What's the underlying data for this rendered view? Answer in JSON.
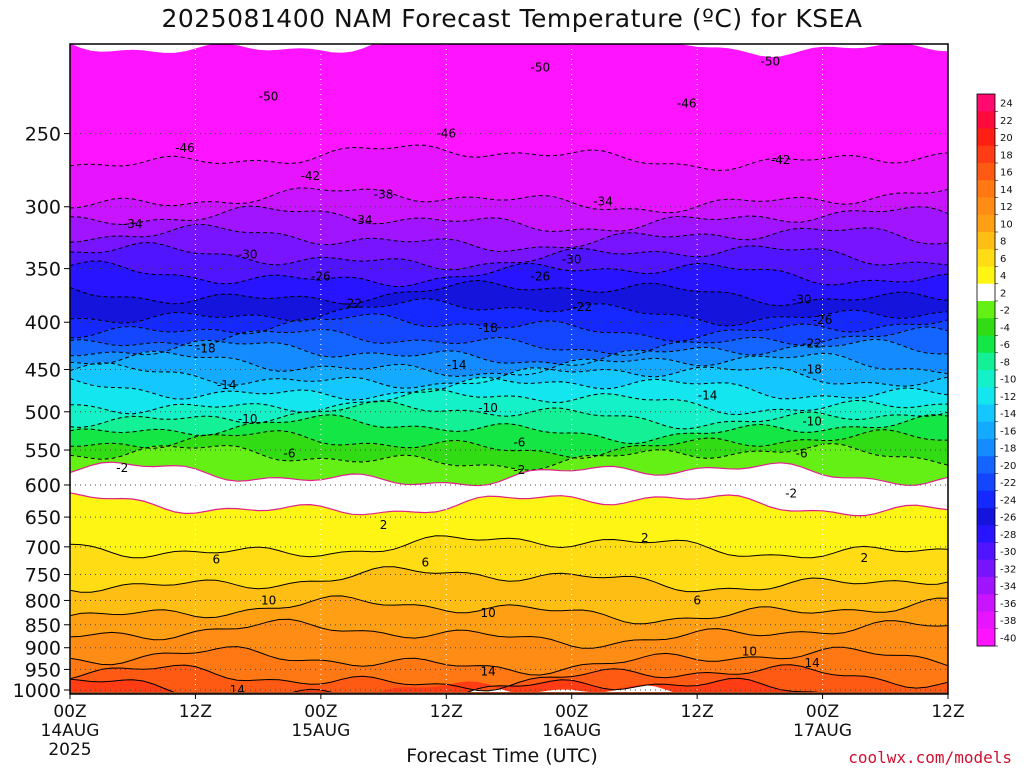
{
  "title": "2025081400 NAM Forecast Temperature (ºC) for KSEA",
  "credit": "coolwx.com/models",
  "chart_data": {
    "type": "heatmap",
    "title": "2025081400 NAM Forecast Temperature (ºC) for KSEA",
    "xlabel": "Forecast Time (UTC)",
    "ylabel": "",
    "x_ticks": [
      {
        "hour": 0,
        "label": [
          "00Z",
          "14AUG",
          "2025"
        ]
      },
      {
        "hour": 12,
        "label": [
          "12Z"
        ]
      },
      {
        "hour": 24,
        "label": [
          "00Z",
          "15AUG"
        ]
      },
      {
        "hour": 36,
        "label": [
          "12Z"
        ]
      },
      {
        "hour": 48,
        "label": [
          "00Z",
          "16AUG"
        ]
      },
      {
        "hour": 60,
        "label": [
          "12Z"
        ]
      },
      {
        "hour": 72,
        "label": [
          "00Z",
          "17AUG"
        ]
      },
      {
        "hour": 84,
        "label": [
          "12Z"
        ]
      }
    ],
    "xlim": [
      0,
      84
    ],
    "y_ticks": [
      250,
      300,
      350,
      400,
      450,
      500,
      550,
      600,
      650,
      700,
      750,
      800,
      850,
      900,
      950,
      1000
    ],
    "ylim": [
      200,
      1010
    ],
    "y_scale": "log-pressure (hPa)",
    "surface_hPa": 1010,
    "colorbar": {
      "labels": [
        "24",
        "22",
        "20",
        "18",
        "16",
        "14",
        "12",
        "10",
        "8",
        "6",
        "4",
        "2",
        "-2",
        "-4",
        "-6",
        "-8",
        "-10",
        "-12",
        "-14",
        "-16",
        "-18",
        "-20",
        "-22",
        "-24",
        "-26",
        "-28",
        "-30",
        "-32",
        "-34",
        "-36",
        "-38",
        "-40"
      ],
      "colors": [
        "#ff0a6e",
        "#ff0a3c",
        "#ff1e14",
        "#ff3c14",
        "#ff5a14",
        "#ff7814",
        "#ff8c14",
        "#ffa014",
        "#ffbe14",
        "#ffdc14",
        "#fff514",
        "#ffffff",
        "#64f014",
        "#32dc14",
        "#14e646",
        "#14f096",
        "#14f0c8",
        "#14e6f0",
        "#14c8ff",
        "#14aaff",
        "#148cff",
        "#1464ff",
        "#1446ff",
        "#1428ff",
        "#1414dc",
        "#2814ff",
        "#5014ff",
        "#7814ff",
        "#a014ff",
        "#c814ff",
        "#e614ff",
        "#ff14ff"
      ]
    },
    "contour_labels": [
      {
        "value": "-50",
        "hour": 19,
        "p": 228
      },
      {
        "value": "-50",
        "hour": 45,
        "p": 212
      },
      {
        "value": "-50",
        "hour": 67,
        "p": 209
      },
      {
        "value": "-46",
        "hour": 11,
        "p": 259
      },
      {
        "value": "-46",
        "hour": 36,
        "p": 250
      },
      {
        "value": "-46",
        "hour": 59,
        "p": 232
      },
      {
        "value": "-42",
        "hour": 23,
        "p": 278
      },
      {
        "value": "-42",
        "hour": 68,
        "p": 267
      },
      {
        "value": "-38",
        "hour": 30,
        "p": 291
      },
      {
        "value": "-34",
        "hour": 6,
        "p": 313
      },
      {
        "value": "-34",
        "hour": 28,
        "p": 310
      },
      {
        "value": "-34",
        "hour": 51,
        "p": 296
      },
      {
        "value": "-30",
        "hour": 17,
        "p": 338
      },
      {
        "value": "-30",
        "hour": 48,
        "p": 342
      },
      {
        "value": "-30",
        "hour": 70,
        "p": 378
      },
      {
        "value": "-26",
        "hour": 24,
        "p": 357
      },
      {
        "value": "-26",
        "hour": 45,
        "p": 357
      },
      {
        "value": "-26",
        "hour": 72,
        "p": 398
      },
      {
        "value": "-22",
        "hour": 27,
        "p": 382
      },
      {
        "value": "-22",
        "hour": 49,
        "p": 385
      },
      {
        "value": "-22",
        "hour": 71,
        "p": 422
      },
      {
        "value": "-18",
        "hour": 13,
        "p": 427
      },
      {
        "value": "-18",
        "hour": 40,
        "p": 406
      },
      {
        "value": "-18",
        "hour": 71,
        "p": 450
      },
      {
        "value": "-14",
        "hour": 15,
        "p": 468
      },
      {
        "value": "-14",
        "hour": 37,
        "p": 445
      },
      {
        "value": "-14",
        "hour": 61,
        "p": 480
      },
      {
        "value": "-10",
        "hour": 17,
        "p": 509
      },
      {
        "value": "-10",
        "hour": 40,
        "p": 495
      },
      {
        "value": "-10",
        "hour": 71,
        "p": 512
      },
      {
        "value": "-6",
        "hour": 21,
        "p": 555
      },
      {
        "value": "-6",
        "hour": 43,
        "p": 540
      },
      {
        "value": "-6",
        "hour": 70,
        "p": 555
      },
      {
        "value": "-2",
        "hour": 5,
        "p": 575
      },
      {
        "value": "-2",
        "hour": 43,
        "p": 578
      },
      {
        "value": "-2",
        "hour": 69,
        "p": 613
      },
      {
        "value": "2",
        "hour": 30,
        "p": 663
      },
      {
        "value": "2",
        "hour": 55,
        "p": 685
      },
      {
        "value": "2",
        "hour": 76,
        "p": 720
      },
      {
        "value": "6",
        "hour": 14,
        "p": 722
      },
      {
        "value": "6",
        "hour": 34,
        "p": 728
      },
      {
        "value": "6",
        "hour": 60,
        "p": 800
      },
      {
        "value": "10",
        "hour": 19,
        "p": 800
      },
      {
        "value": "10",
        "hour": 40,
        "p": 825
      },
      {
        "value": "10",
        "hour": 65,
        "p": 908
      },
      {
        "value": "14",
        "hour": 16,
        "p": 1000
      },
      {
        "value": "14",
        "hour": 40,
        "p": 955
      },
      {
        "value": "14",
        "hour": 71,
        "p": 935
      }
    ],
    "color_bands": [
      {
        "temp": -52,
        "p_top": 200,
        "p_bottom": 265,
        "color": "#ff14ff"
      },
      {
        "temp": -44,
        "p_top": 265,
        "p_bottom": 295,
        "color": "#e614ff"
      },
      {
        "temp": -40,
        "p_top": 295,
        "p_bottom": 310,
        "color": "#c814ff"
      },
      {
        "temp": -36,
        "p_top": 310,
        "p_bottom": 325,
        "color": "#a014ff"
      },
      {
        "temp": -33,
        "p_top": 325,
        "p_bottom": 340,
        "color": "#7814ff"
      },
      {
        "temp": -30,
        "p_top": 340,
        "p_bottom": 355,
        "color": "#5014ff"
      },
      {
        "temp": -28,
        "p_top": 355,
        "p_bottom": 372,
        "color": "#2814ff"
      },
      {
        "temp": -26,
        "p_top": 372,
        "p_bottom": 390,
        "color": "#1414dc"
      },
      {
        "temp": -24,
        "p_top": 390,
        "p_bottom": 405,
        "color": "#1428ff"
      },
      {
        "temp": -22,
        "p_top": 405,
        "p_bottom": 420,
        "color": "#1446ff"
      },
      {
        "temp": -20,
        "p_top": 420,
        "p_bottom": 432,
        "color": "#1464ff"
      },
      {
        "temp": -18,
        "p_top": 432,
        "p_bottom": 445,
        "color": "#148cff"
      },
      {
        "temp": -16,
        "p_top": 445,
        "p_bottom": 458,
        "color": "#14aaff"
      },
      {
        "temp": -14,
        "p_top": 458,
        "p_bottom": 472,
        "color": "#14c8ff"
      },
      {
        "temp": -12,
        "p_top": 472,
        "p_bottom": 488,
        "color": "#14e6f0"
      },
      {
        "temp": -10,
        "p_top": 488,
        "p_bottom": 504,
        "color": "#14f0c8"
      },
      {
        "temp": -8,
        "p_top": 504,
        "p_bottom": 522,
        "color": "#14f096"
      },
      {
        "temp": -6,
        "p_top": 522,
        "p_bottom": 542,
        "color": "#14e646"
      },
      {
        "temp": -4,
        "p_top": 542,
        "p_bottom": 560,
        "color": "#32dc14"
      },
      {
        "temp": -2,
        "p_top": 560,
        "p_bottom": 585,
        "color": "#64f014"
      },
      {
        "temp": 0,
        "p_top": 585,
        "p_bottom": 630,
        "color": "#ffffff"
      },
      {
        "temp": 3,
        "p_top": 630,
        "p_bottom": 700,
        "color": "#fff514"
      },
      {
        "temp": 5,
        "p_top": 700,
        "p_bottom": 760,
        "color": "#ffdc14"
      },
      {
        "temp": 8,
        "p_top": 760,
        "p_bottom": 820,
        "color": "#ffbe14"
      },
      {
        "temp": 10,
        "p_top": 820,
        "p_bottom": 870,
        "color": "#ffa014"
      },
      {
        "temp": 12,
        "p_top": 870,
        "p_bottom": 930,
        "color": "#ff8c14"
      },
      {
        "temp": 14,
        "p_top": 930,
        "p_bottom": 970,
        "color": "#ff7814"
      },
      {
        "temp": 16,
        "p_top": 970,
        "p_bottom": 1000,
        "color": "#ff5a14"
      },
      {
        "temp": 18,
        "p_top": 1000,
        "p_bottom": 1010,
        "color": "#ff3c14"
      }
    ],
    "ground_color": "#a0522d",
    "grid": true,
    "legend": "right"
  }
}
